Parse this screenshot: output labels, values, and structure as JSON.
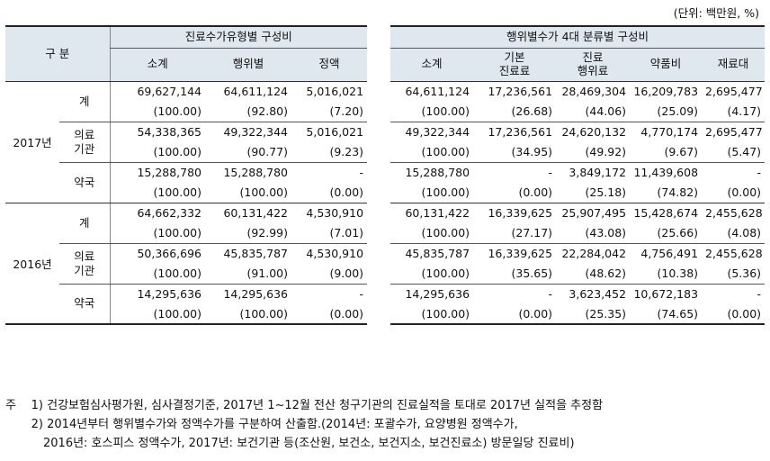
{
  "unit": "(단위: 백만원, %)",
  "headers": {
    "category": "구  분",
    "group1": "진료수가유형별 구성비",
    "group2": "행위별수가 4대 분류별 구성비",
    "cols1": [
      "소계",
      "행위별",
      "정액"
    ],
    "cols2": [
      "소계",
      "기본\n진료료",
      "진료\n행위료",
      "약품비",
      "재료대"
    ]
  },
  "rows": [
    {
      "year": "2017년",
      "cat": "계",
      "amt": [
        "69,627,144",
        "64,611,124",
        "5,016,021",
        "64,611,124",
        "17,236,561",
        "28,469,304",
        "16,209,783",
        "2,695,477"
      ],
      "pct": [
        "(100.00)",
        "(92.80)",
        "(7.20)",
        "(100.00)",
        "(26.68)",
        "(44.06)",
        "(25.09)",
        "(4.17)"
      ]
    },
    {
      "year": "2017년",
      "cat": "의료\n기관",
      "amt": [
        "54,338,365",
        "49,322,344",
        "5,016,021",
        "49,322,344",
        "17,236,561",
        "24,620,132",
        "4,770,174",
        "2,695,477"
      ],
      "pct": [
        "(100.00)",
        "(90.77)",
        "(9.23)",
        "(100.00)",
        "(34.95)",
        "(49.92)",
        "(9.67)",
        "(5.47)"
      ]
    },
    {
      "year": "2017년",
      "cat": "약국",
      "amt": [
        "15,288,780",
        "15,288,780",
        "-",
        "15,288,780",
        "-",
        "3,849,172",
        "11,439,608",
        "-"
      ],
      "pct": [
        "(100.00)",
        "(100.00)",
        "(0.00)",
        "(100.00)",
        "(0.00)",
        "(25.18)",
        "(74.82)",
        "(0.00)"
      ]
    },
    {
      "year": "2016년",
      "cat": "계",
      "amt": [
        "64,662,332",
        "60,131,422",
        "4,530,910",
        "60,131,422",
        "16,339,625",
        "25,907,495",
        "15,428,674",
        "2,455,628"
      ],
      "pct": [
        "(100.00)",
        "(92.99)",
        "(7.01)",
        "(100.00)",
        "(27.17)",
        "(43.08)",
        "(25.66)",
        "(4.08)"
      ]
    },
    {
      "year": "2016년",
      "cat": "의료\n기관",
      "amt": [
        "50,366,696",
        "45,835,787",
        "4,530,910",
        "45,835,787",
        "16,339,625",
        "22,284,042",
        "4,756,491",
        "2,455,628"
      ],
      "pct": [
        "(100.00)",
        "(91.00)",
        "(9.00)",
        "(100.00)",
        "(35.65)",
        "(48.62)",
        "(10.38)",
        "(5.36)"
      ]
    },
    {
      "year": "2016년",
      "cat": "약국",
      "amt": [
        "14,295,636",
        "14,295,636",
        "-",
        "14,295,636",
        "-",
        "3,623,452",
        "10,672,183",
        "-"
      ],
      "pct": [
        "(100.00)",
        "(100.00)",
        "(0.00)",
        "(100.00)",
        "(0.00)",
        "(25.35)",
        "(74.65)",
        "(0.00)"
      ]
    }
  ],
  "notes": {
    "mark": "주",
    "n1_label": "1)",
    "n1": "건강보험심사평가원, 심사결정기준, 2017년 1~12월 전산 청구기관의 진료실적을 토대로 2017년 실적을 추정함",
    "n2_label": "2)",
    "n2a": "2014년부터 행위별수가와 정액수가를 구분하여 산출함.(2014년: 포괄수가, 요양병원 정액수가,",
    "n2b": "2016년: 호스피스 정액수가, 2017년: 보건기관 등(조산원, 보건소, 보건지소, 보건진료소) 방문일당 진료비)"
  },
  "colors": {
    "header_bg": "#dfe7ef",
    "rule": "#222222"
  }
}
